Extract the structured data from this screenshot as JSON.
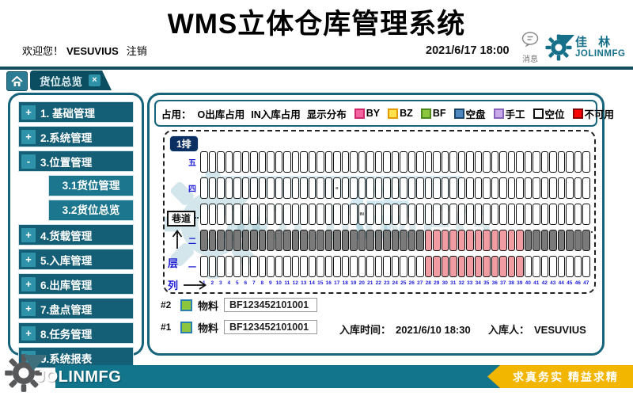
{
  "header": {
    "title": "WMS立体仓库管理系统",
    "welcome": "欢迎您！",
    "user": "VESUVIUS",
    "logout_label": "注销",
    "datetime": "2021/6/17 18:00",
    "message_label": "消息",
    "logo_cn": "佳 林",
    "logo_en": "JOLINMFG"
  },
  "tabbar": {
    "active_tab": "货位总览",
    "close_label": "×"
  },
  "sidebar": {
    "items": [
      {
        "prefix": "+",
        "label": "1. 基础管理",
        "children": []
      },
      {
        "prefix": "+",
        "label": "2.系统管理",
        "children": []
      },
      {
        "prefix": "-",
        "label": "3.位置管理",
        "children": [
          "3.1货位管理",
          "3.2货位总览"
        ]
      },
      {
        "prefix": "+",
        "label": "4.货载管理",
        "children": []
      },
      {
        "prefix": "+",
        "label": "5.入库管理",
        "children": []
      },
      {
        "prefix": "+",
        "label": "6.出库管理",
        "children": []
      },
      {
        "prefix": "+",
        "label": "7.盘点管理",
        "children": []
      },
      {
        "prefix": "+",
        "label": "8.任务管理",
        "children": []
      },
      {
        "prefix": "+",
        "label": "9.系统报表",
        "children": []
      }
    ]
  },
  "legend": {
    "occupied_label": "占用：",
    "out_label": "O出库占用",
    "in_label": "IN入库占用",
    "dist_label": "显示分布",
    "items": [
      {
        "label": "BY",
        "fill": "#F364A0",
        "border": "#D02A6E"
      },
      {
        "label": "BZ",
        "fill": "#FFE14D",
        "border": "#E39B00"
      },
      {
        "label": "BF",
        "fill": "#8CC63E",
        "border": "#4C8A1F"
      },
      {
        "label": "空盘",
        "fill": "#4E86BE",
        "border": "#17456E"
      },
      {
        "label": "手工",
        "fill": "#C8A9E9",
        "border": "#8A63BC"
      },
      {
        "label": "空位",
        "fill": "#FFFFFF",
        "border": "#111111"
      },
      {
        "label": "不可用",
        "fill": "#FF0000",
        "border": "#8A0000"
      }
    ]
  },
  "rack": {
    "row_badge": "1排",
    "aisle_label": "巷道",
    "level_label": "层",
    "column_label": "列",
    "columns": 47,
    "watermark": "JOLINMFG",
    "cell_types": {
      "empty": {
        "fill": "#FFFFFF"
      },
      "stored": {
        "fill": "#7A7A7A"
      },
      "by": {
        "fill": "#F09CA2"
      }
    },
    "rows": [
      {
        "level": "五",
        "runs": [
          {
            "from": 1,
            "to": 47,
            "type": "empty"
          }
        ],
        "marks": []
      },
      {
        "level": "四",
        "runs": [
          {
            "from": 1,
            "to": 47,
            "type": "empty"
          }
        ],
        "marks": [
          {
            "col": 17,
            "text": "o"
          }
        ]
      },
      {
        "level": "三",
        "runs": [
          {
            "from": 1,
            "to": 47,
            "type": "empty"
          }
        ],
        "marks": [
          {
            "col": 20,
            "text": "IN"
          }
        ]
      },
      {
        "level": "二",
        "runs": [
          {
            "from": 1,
            "to": 27,
            "type": "stored"
          },
          {
            "from": 28,
            "to": 39,
            "type": "by"
          },
          {
            "from": 40,
            "to": 47,
            "type": "stored"
          }
        ],
        "marks": []
      },
      {
        "level": "一",
        "runs": [
          {
            "from": 1,
            "to": 27,
            "type": "empty"
          },
          {
            "from": 28,
            "to": 39,
            "type": "by"
          },
          {
            "from": 40,
            "to": 47,
            "type": "empty"
          }
        ],
        "marks": []
      }
    ]
  },
  "details": {
    "swatch": {
      "fill": "#8CC63E",
      "border": "#2B7FB0"
    },
    "slots": [
      {
        "tag": "#2",
        "label": "物料",
        "value": "BF123452101001"
      },
      {
        "tag": "#1",
        "label": "物料",
        "value": "BF123452101001"
      }
    ],
    "in_time_label": "入库时间：",
    "in_time": "2021/6/10 18:30",
    "in_user_label": "入库人：",
    "in_user": "VESUVIUS"
  },
  "footer": {
    "logo": "JOLINMFG",
    "slogan": "求真务实  精益求精"
  }
}
